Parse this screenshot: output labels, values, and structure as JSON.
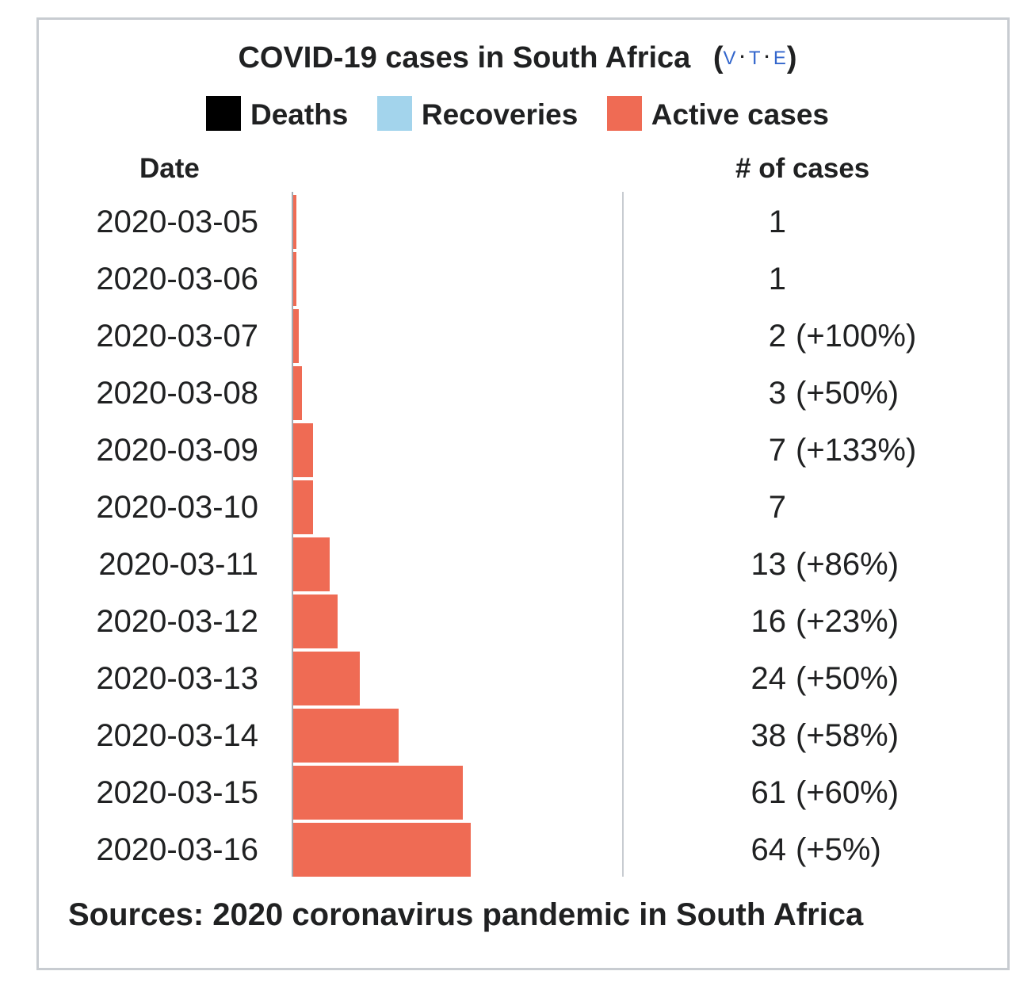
{
  "chart_data": {
    "type": "bar",
    "orientation": "horizontal",
    "title": "COVID-19 cases in South Africa",
    "vte": {
      "open": "(",
      "v": "V",
      "sep1": "·",
      "t": "T",
      "sep2": "·",
      "e": "E",
      "close": ")"
    },
    "legend": [
      {
        "label": "Deaths",
        "color": "#000000"
      },
      {
        "label": "Recoveries",
        "color": "#a3d4ec"
      },
      {
        "label": "Active cases",
        "color": "#ef6b54"
      }
    ],
    "column_headers": {
      "date": "Date",
      "cases": "# of cases"
    },
    "xmax": 64,
    "rows": [
      {
        "date": "2020-03-05",
        "deaths": 0,
        "recoveries": 0,
        "active": 1,
        "cases": "1",
        "change": ""
      },
      {
        "date": "2020-03-06",
        "deaths": 0,
        "recoveries": 0,
        "active": 1,
        "cases": "1",
        "change": ""
      },
      {
        "date": "2020-03-07",
        "deaths": 0,
        "recoveries": 0,
        "active": 2,
        "cases": "2",
        "change": "(+100%)"
      },
      {
        "date": "2020-03-08",
        "deaths": 0,
        "recoveries": 0,
        "active": 3,
        "cases": "3",
        "change": "(+50%)"
      },
      {
        "date": "2020-03-09",
        "deaths": 0,
        "recoveries": 0,
        "active": 7,
        "cases": "7",
        "change": "(+133%)"
      },
      {
        "date": "2020-03-10",
        "deaths": 0,
        "recoveries": 0,
        "active": 7,
        "cases": "7",
        "change": ""
      },
      {
        "date": "2020-03-11",
        "deaths": 0,
        "recoveries": 0,
        "active": 13,
        "cases": "13",
        "change": "(+86%)"
      },
      {
        "date": "2020-03-12",
        "deaths": 0,
        "recoveries": 0,
        "active": 16,
        "cases": "16",
        "change": "(+23%)"
      },
      {
        "date": "2020-03-13",
        "deaths": 0,
        "recoveries": 0,
        "active": 24,
        "cases": "24",
        "change": "(+50%)"
      },
      {
        "date": "2020-03-14",
        "deaths": 0,
        "recoveries": 0,
        "active": 38,
        "cases": "38",
        "change": "(+58%)"
      },
      {
        "date": "2020-03-15",
        "deaths": 0,
        "recoveries": 0,
        "active": 61,
        "cases": "61",
        "change": "(+60%)"
      },
      {
        "date": "2020-03-16",
        "deaths": 0,
        "recoveries": 0,
        "active": 64,
        "cases": "64",
        "change": "(+5%)"
      }
    ],
    "sources": "Sources: 2020 coronavirus pandemic in South Africa"
  }
}
